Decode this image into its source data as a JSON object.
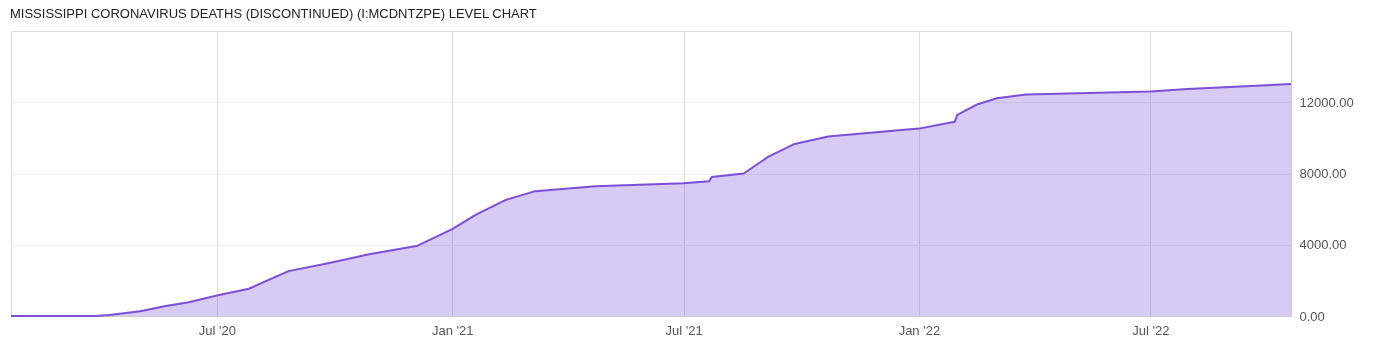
{
  "chart_data": {
    "type": "area",
    "title": "MISSISSIPPI CORONAVIRUS DEATHS (DISCONTINUED) (I:MCDNTZPE) LEVEL CHART",
    "x": [
      "2020-01-22",
      "2020-03-28",
      "2020-04-08",
      "2020-05-02",
      "2020-05-21",
      "2020-06-09",
      "2020-07-01",
      "2020-07-26",
      "2020-08-26",
      "2020-09-26",
      "2020-10-27",
      "2020-12-05",
      "2021-01-01",
      "2021-01-20",
      "2021-02-12",
      "2021-03-07",
      "2021-04-23",
      "2021-07-01",
      "2021-07-21",
      "2021-07-23",
      "2021-08-17",
      "2021-09-05",
      "2021-09-25",
      "2021-10-22",
      "2021-12-23",
      "2022-01-01",
      "2022-01-29",
      "2022-01-31",
      "2022-02-16",
      "2022-03-03",
      "2022-03-26",
      "2022-07-01",
      "2022-07-30",
      "2022-10-19"
    ],
    "series": [
      {
        "color": "#7b4fd6",
        "values": [
          0,
          0,
          50,
          270,
          550,
          770,
          1150,
          1530,
          2520,
          2960,
          3450,
          3950,
          4880,
          5700,
          6520,
          7010,
          7290,
          7450,
          7560,
          7800,
          8000,
          8930,
          9640,
          10080,
          10470,
          10520,
          10900,
          11290,
          11890,
          12220,
          12440,
          12600,
          12750,
          13020
        ]
      }
    ],
    "xlim": [
      "2020-01-22",
      "2022-10-19"
    ],
    "xticks": [
      {
        "value": "2020-07-01",
        "label": "Jul '20"
      },
      {
        "value": "2021-01-01",
        "label": "Jan '21"
      },
      {
        "value": "2021-07-01",
        "label": "Jul '21"
      },
      {
        "value": "2022-01-01",
        "label": "Jan '22"
      },
      {
        "value": "2022-07-01",
        "label": "Jul '22"
      }
    ],
    "ylim": [
      0,
      16000
    ],
    "yticks": [
      {
        "value": 0,
        "label": "0.00"
      },
      {
        "value": 4000,
        "label": "4000.00"
      },
      {
        "value": 8000,
        "label": "8000.00"
      },
      {
        "value": 12000,
        "label": "12000.00"
      }
    ],
    "grid": true
  }
}
